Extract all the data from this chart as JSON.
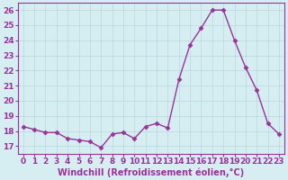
{
  "x": [
    0,
    1,
    2,
    3,
    4,
    5,
    6,
    7,
    8,
    9,
    10,
    11,
    12,
    13,
    14,
    15,
    16,
    17,
    18,
    19,
    20,
    21,
    22,
    23
  ],
  "y": [
    18.3,
    18.1,
    17.9,
    17.9,
    17.5,
    17.4,
    17.3,
    16.9,
    17.8,
    17.9,
    17.5,
    18.3,
    18.5,
    18.2,
    21.4,
    23.7,
    24.8,
    26.0,
    26.0,
    24.0,
    22.2,
    20.7,
    18.5,
    17.8
  ],
  "line_color": "#993399",
  "marker": "D",
  "markersize": 2.5,
  "linewidth": 1.0,
  "xlabel": "Windchill (Refroidissement éolien,°C)",
  "xlabel_fontsize": 7,
  "tick_fontsize": 6.5,
  "ylim": [
    16.5,
    26.5
  ],
  "yticks": [
    17,
    18,
    19,
    20,
    21,
    22,
    23,
    24,
    25,
    26
  ],
  "xticks": [
    0,
    1,
    2,
    3,
    4,
    5,
    6,
    7,
    8,
    9,
    10,
    11,
    12,
    13,
    14,
    15,
    16,
    17,
    18,
    19,
    20,
    21,
    22,
    23
  ],
  "background_color": "#d6eef2",
  "grid_color": "#b8d8dd",
  "label_color": "#993399",
  "spine_color": "#993399"
}
